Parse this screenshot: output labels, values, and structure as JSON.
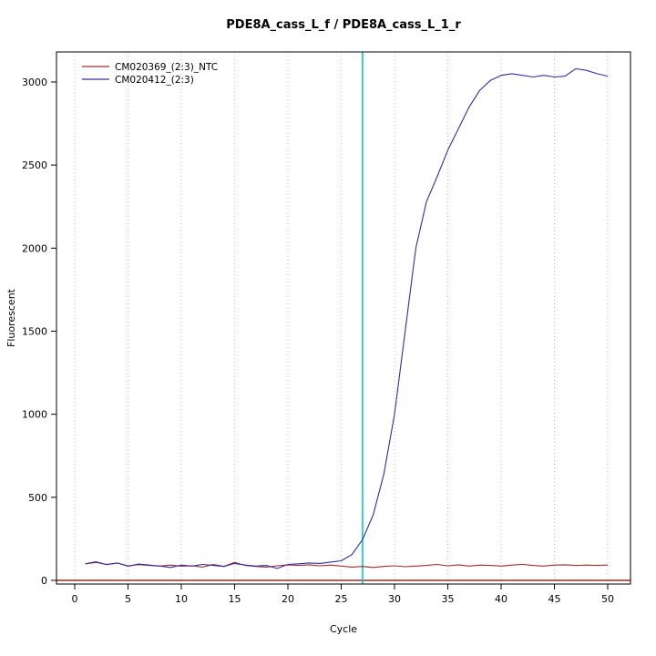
{
  "chart_data": {
    "type": "line",
    "title": "PDE8A_cass_L_f / PDE8A_cass_L_1_r",
    "xlabel": "Cycle",
    "ylabel": "Fluorescent",
    "xlim": [
      0,
      50
    ],
    "ylim": [
      0,
      3000
    ],
    "xticks": [
      0,
      5,
      10,
      15,
      20,
      25,
      30,
      35,
      40,
      45,
      50
    ],
    "yticks": [
      0,
      500,
      1000,
      1500,
      2000,
      2500,
      3000
    ],
    "grid": "vertical dotted lightgray",
    "legend_position": "top-left",
    "threshold_line": {
      "x": 27,
      "color": "#00CDCD"
    },
    "zero_line": {
      "y": 0,
      "color": "#8B0000"
    },
    "x": [
      1,
      2,
      3,
      4,
      5,
      6,
      7,
      8,
      9,
      10,
      11,
      12,
      13,
      14,
      15,
      16,
      17,
      18,
      19,
      20,
      21,
      22,
      23,
      24,
      25,
      26,
      27,
      28,
      29,
      30,
      31,
      32,
      33,
      34,
      35,
      36,
      37,
      38,
      39,
      40,
      41,
      42,
      43,
      44,
      45,
      46,
      47,
      48,
      49,
      50
    ],
    "series": [
      {
        "name": "CM020369_(2:3)_NTC",
        "color": "#A52A2A",
        "values": [
          100,
          108,
          96,
          104,
          88,
          95,
          90,
          86,
          92,
          85,
          88,
          80,
          96,
          84,
          108,
          90,
          84,
          80,
          88,
          94,
          90,
          94,
          88,
          92,
          86,
          80,
          84,
          78,
          84,
          88,
          82,
          86,
          90,
          96,
          88,
          94,
          86,
          92,
          90,
          86,
          92,
          96,
          90,
          86,
          92,
          94,
          90,
          92,
          90,
          92
        ]
      },
      {
        "name": "CM020412_(2:3)",
        "color": "#30309A",
        "values": [
          100,
          112,
          95,
          105,
          85,
          98,
          92,
          86,
          78,
          92,
          86,
          96,
          90,
          84,
          102,
          92,
          86,
          90,
          72,
          96,
          100,
          105,
          102,
          110,
          118,
          155,
          245,
          395,
          640,
          1000,
          1500,
          2000,
          2280,
          2430,
          2590,
          2720,
          2850,
          2950,
          3010,
          3040,
          3050,
          3040,
          3030,
          3040,
          3030,
          3035,
          3080,
          3070,
          3050,
          3035
        ]
      }
    ]
  }
}
